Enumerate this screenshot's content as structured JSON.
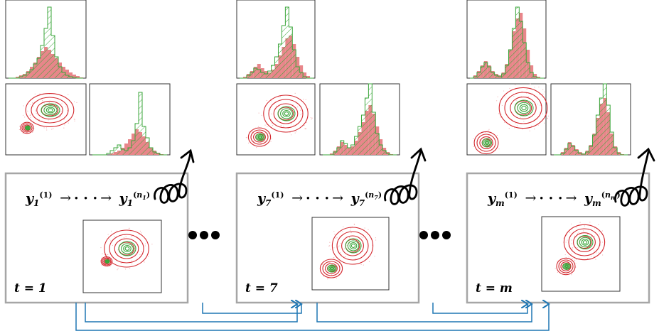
{
  "panels": [
    {
      "id": "p1",
      "time_label": "t = 1",
      "seq": {
        "sub": "1",
        "sup_first": "(1)",
        "sup_last_n": "n",
        "sup_last_sub": "1"
      }
    },
    {
      "id": "p2",
      "time_label": "t = 7",
      "seq": {
        "sub": "7",
        "sup_first": "(1)",
        "sup_last_n": "n",
        "sup_last_sub": "7"
      }
    },
    {
      "id": "p3",
      "time_label": "t = m",
      "seq": {
        "sub": "m",
        "sup_first": "(1)",
        "sup_last_n": "n",
        "sup_last_sub": "m"
      }
    }
  ],
  "symbols": {
    "var": "y",
    "arrow": "→",
    "dots": "· · ·"
  },
  "colors": {
    "box_border": "#a6a6a6",
    "red_fill": "#e8868a",
    "red_line": "#d3272d",
    "green_line": "#3aa63a",
    "arrow_blue": "#1f77b4",
    "scatter_dot": "#f2b6b8"
  }
}
